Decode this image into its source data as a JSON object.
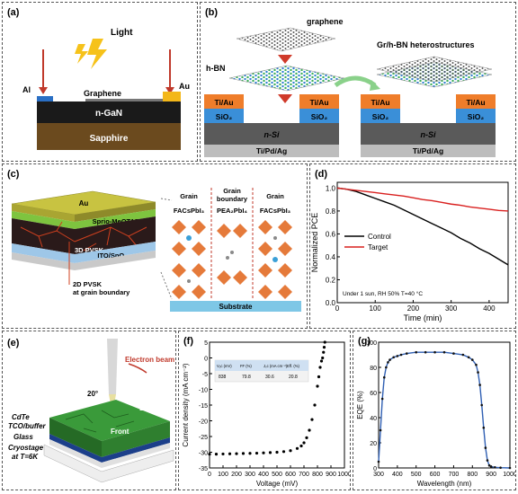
{
  "panel_a": {
    "label": "(a)",
    "light": "Light",
    "al": "Al",
    "au": "Au",
    "graphene": "Graphene",
    "ngan": "n-GaN",
    "sapphire": "Sapphire"
  },
  "panel_b": {
    "label": "(b)",
    "graphene": "graphene",
    "hbn": "h-BN",
    "hetero": "Gr/h-BN heterostructures",
    "tiau": "Ti/Au",
    "sio2": "SiO₂",
    "nsi": "n-Si",
    "tipdag": "Ti/Pd/Ag"
  },
  "panel_c": {
    "label": "(c)",
    "au": "Au",
    "spiro": "Sprio-MeOTAD",
    "pvsk3d": "3D PVSK",
    "ito": "ITO/SnO₂",
    "pvsk2d_1": "2D PVSK",
    "pvsk2d_2": "at grain boundary",
    "grain1": "Grain",
    "grain2": "Grain",
    "boundary": "boundary",
    "grain3": "Grain",
    "facs1": "FACsPbI₃",
    "pea": "PEA₂PbI₄",
    "facs2": "FACsPbI₃",
    "substrate": "Substrate"
  },
  "panel_e": {
    "label": "(e)",
    "ebeam": "Electron beam",
    "back": "Back",
    "front": "Front",
    "angle": "20°",
    "cdte": "CdTe",
    "tco": "TCO/buffer",
    "glass": "Glass",
    "cryo1": "Cryostage",
    "cryo2": "at T=6K"
  },
  "chart_data": [
    {
      "id": "d",
      "label": "(d)",
      "type": "line",
      "xlabel": "Time (min)",
      "ylabel": "Normalized PCE",
      "xlim": [
        0,
        450
      ],
      "ylim": [
        0.0,
        1.05
      ],
      "xticks": [
        0,
        100,
        200,
        300,
        400
      ],
      "yticks": [
        0.0,
        0.2,
        0.4,
        0.6,
        0.8,
        1.0
      ],
      "annotation": "Under 1 sun, RH 50% T=40 °C",
      "legend_placement": "middle-left",
      "series": [
        {
          "name": "Control",
          "color": "#000000",
          "x": [
            0,
            25,
            50,
            75,
            100,
            125,
            150,
            175,
            200,
            225,
            250,
            275,
            300,
            325,
            350,
            375,
            400,
            425,
            450
          ],
          "y": [
            1.0,
            0.99,
            0.97,
            0.94,
            0.91,
            0.88,
            0.85,
            0.81,
            0.77,
            0.73,
            0.69,
            0.65,
            0.61,
            0.56,
            0.52,
            0.47,
            0.43,
            0.38,
            0.33
          ]
        },
        {
          "name": "Target",
          "color": "#d9201f",
          "x": [
            0,
            25,
            50,
            75,
            100,
            125,
            150,
            175,
            200,
            225,
            250,
            275,
            300,
            325,
            350,
            375,
            400,
            425,
            450
          ],
          "y": [
            1.0,
            0.99,
            0.98,
            0.97,
            0.96,
            0.95,
            0.94,
            0.93,
            0.915,
            0.9,
            0.89,
            0.875,
            0.86,
            0.85,
            0.835,
            0.825,
            0.815,
            0.805,
            0.8
          ]
        }
      ]
    },
    {
      "id": "f",
      "label": "(f)",
      "type": "scatter",
      "xlabel": "Voltage (mV)",
      "ylabel": "Current density (mA cm⁻²)",
      "xlim": [
        0,
        1000
      ],
      "ylim": [
        -35,
        5
      ],
      "xticks": [
        0,
        100,
        200,
        300,
        400,
        500,
        600,
        700,
        800,
        900,
        1000
      ],
      "yticks": [
        -35,
        -30,
        -25,
        -20,
        -15,
        -10,
        -5,
        0,
        5
      ],
      "table": {
        "headers": [
          "Vₒc (mV)",
          "FF (%)",
          "Jₛc (mA cm⁻²)",
          "Eff. (%)"
        ],
        "values": [
          "838",
          "79.8",
          "30.6",
          "20.8"
        ]
      },
      "series": [
        {
          "name": "",
          "color": "#000000",
          "x": [
            0,
            50,
            100,
            150,
            200,
            250,
            300,
            350,
            400,
            450,
            500,
            550,
            600,
            650,
            680,
            700,
            720,
            740,
            760,
            780,
            800,
            810,
            820,
            830,
            838,
            845,
            850,
            855
          ],
          "y": [
            -30.6,
            -30.6,
            -30.55,
            -30.5,
            -30.45,
            -30.4,
            -30.35,
            -30.3,
            -30.2,
            -30.1,
            -30.0,
            -29.8,
            -29.5,
            -28.8,
            -28.0,
            -27.0,
            -25.4,
            -23.0,
            -19.6,
            -15.0,
            -9.0,
            -6.0,
            -3.0,
            -1.0,
            0.0,
            1.8,
            3.4,
            5.0
          ]
        }
      ]
    },
    {
      "id": "g",
      "label": "(g)",
      "type": "line",
      "xlabel": "Wavelength (nm)",
      "ylabel": "EQE (%)",
      "xlim": [
        300,
        1000
      ],
      "ylim": [
        0,
        100
      ],
      "xticks": [
        300,
        400,
        500,
        600,
        700,
        800,
        900,
        1000
      ],
      "yticks": [
        0,
        20,
        40,
        60,
        80,
        100
      ],
      "series": [
        {
          "name": "",
          "color": "#2f5fb3",
          "x": [
            300,
            310,
            320,
            330,
            340,
            350,
            360,
            380,
            400,
            420,
            450,
            500,
            550,
            600,
            650,
            700,
            750,
            780,
            800,
            820,
            830,
            840,
            850,
            860,
            870,
            880,
            890,
            900,
            920,
            950,
            1000
          ],
          "y": [
            5,
            30,
            55,
            72,
            80,
            84,
            86,
            88,
            89,
            90,
            91,
            92,
            92,
            92,
            92,
            91,
            90,
            88,
            86,
            82,
            76,
            66,
            50,
            32,
            16,
            6,
            2,
            1,
            0.5,
            0.2,
            0
          ]
        }
      ]
    }
  ]
}
